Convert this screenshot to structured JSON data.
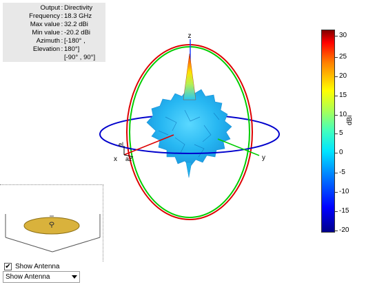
{
  "info": {
    "rows": [
      {
        "key": "Output",
        "value": "Directivity"
      },
      {
        "key": "Frequency",
        "value": "18.3 GHz"
      },
      {
        "key": "Max value",
        "value": "32.2 dBi"
      },
      {
        "key": "Min value",
        "value": "-20.2 dBi"
      },
      {
        "key": "Azimuth",
        "value": "[-180° ,"
      },
      {
        "key": "Elevation",
        "value": "180°]"
      },
      {
        "key": "",
        "value": "[-90° , 90°]"
      }
    ]
  },
  "axes": {
    "x": "x",
    "y": "y",
    "z": "z",
    "el": "el",
    "az": "az"
  },
  "colors": {
    "azimuth_ring": "#0000cc",
    "elevation_ring_xz": "#dd0000",
    "elevation_ring_yz": "#00cc00"
  },
  "colorbar": {
    "unit": "dBi",
    "ticks": [
      "30",
      "25",
      "20",
      "15",
      "10",
      "5",
      "0",
      "-5",
      "-10",
      "-15",
      "-20"
    ],
    "colormap": "jet"
  },
  "controls": {
    "show_antenna_checked": true,
    "show_antenna_label": "Show Antenna",
    "show_antenna_select_value": "Show Antenna"
  }
}
